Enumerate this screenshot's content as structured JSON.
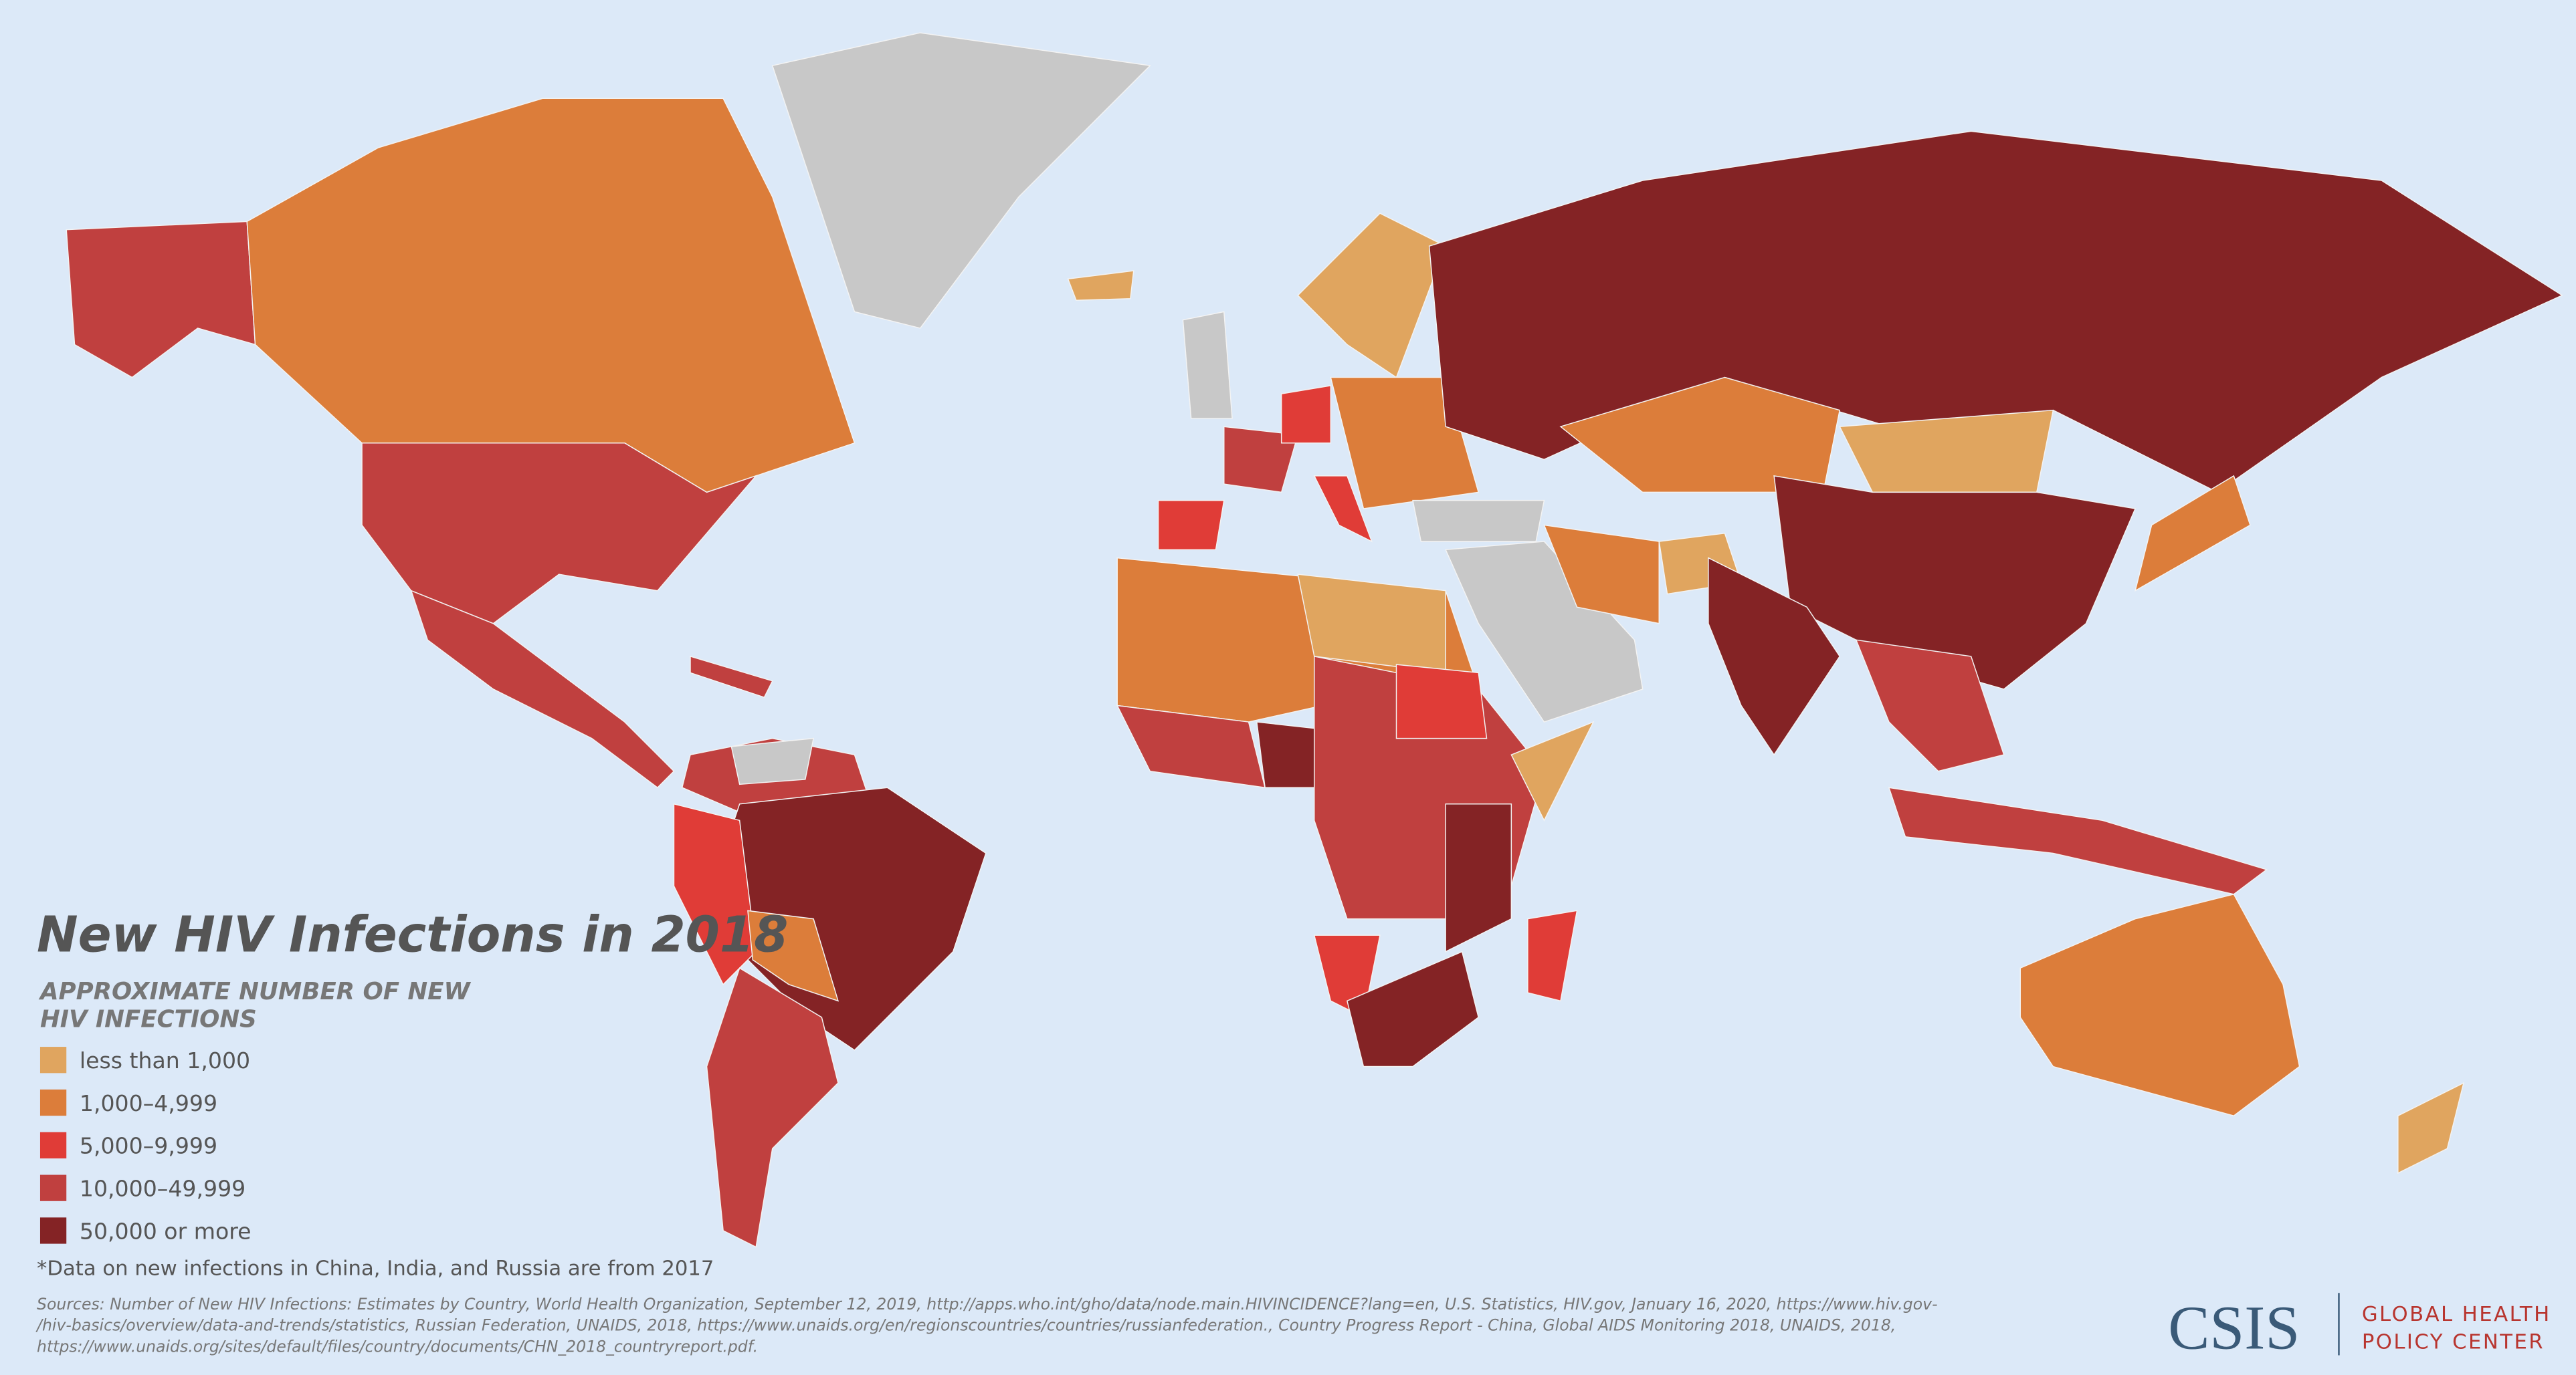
{
  "title": "New HIV Infections in 2018",
  "legend": {
    "title_lines": [
      "APPROXIMATE NUMBER OF NEW",
      "HIV INFECTIONS"
    ],
    "items": [
      {
        "label": "less than 1,000",
        "color": "#e0a55f"
      },
      {
        "label": "1,000–4,999",
        "color": "#dc7d3a"
      },
      {
        "label": "5,000–9,999",
        "color": "#e03c37"
      },
      {
        "label": "10,000–49,999",
        "color": "#c0403f"
      },
      {
        "label": "50,000 or more",
        "color": "#842325"
      }
    ]
  },
  "footnote": "*Data on new infections in China, India, and Russia are from 2017",
  "sources": [
    "Sources: Number of New HIV Infections: Estimates by Country, World Health Organization, September 12, 2019, http://apps.who.int/gho/data/node.main.HIVINCIDENCE?lang=en, U.S. Statistics, HIV.gov, January 16, 2020, https://www.hiv.gov-",
    "/hiv-basics/overview/data-and-trends/statistics, Russian Federation, UNAIDS, 2018, https://www.unaids.org/en/regionscountries/countries/russianfederation., Country Progress Report - China, Global AIDS Monitoring 2018, UNAIDS, 2018,",
    "https://www.unaids.org/sites/default/files/country/documents/CHN_2018_countryreport.pdf."
  ],
  "logo": {
    "name": "CSIS",
    "unit_lines": [
      "GLOBAL HEALTH",
      "POLICY CENTER"
    ]
  }
}
